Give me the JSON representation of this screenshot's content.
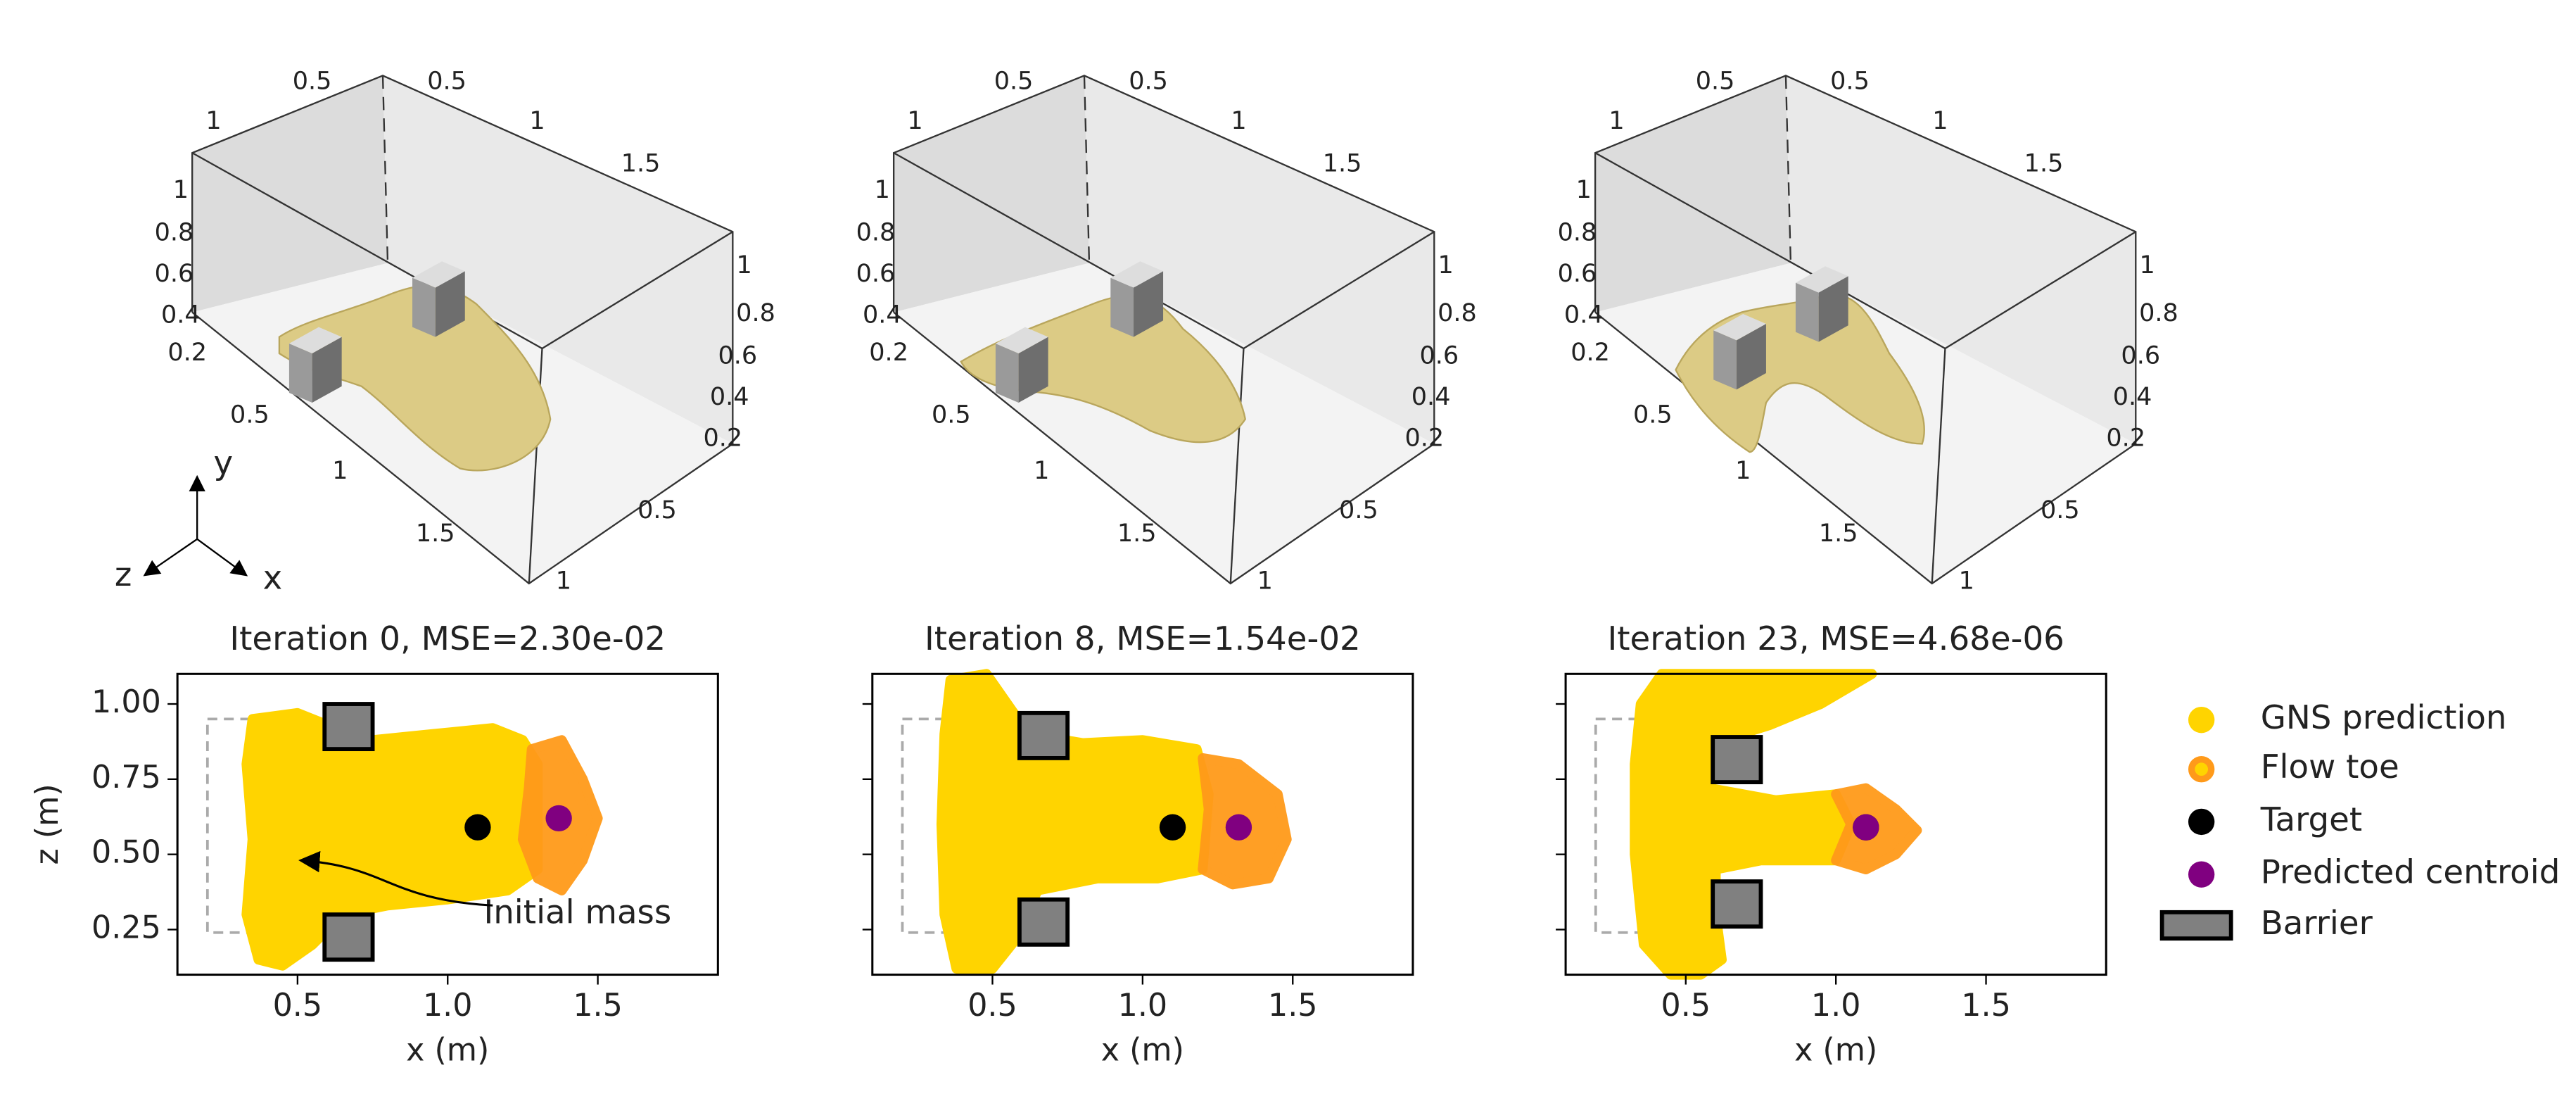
{
  "renders": [
    {
      "tick_labels": [
        "0.5",
        "0.5",
        "1",
        "1",
        "1.5",
        "1",
        "0.8",
        "0.6",
        "0.4",
        "0.2",
        "1",
        "0.8",
        "0.6",
        "0.4",
        "0.2",
        "0.5",
        "1",
        "1.5",
        "0.5",
        "1"
      ]
    },
    {
      "tick_labels": [
        "0.5",
        "0.5",
        "1",
        "1",
        "1.5",
        "1",
        "0.8",
        "0.6",
        "0.4",
        "0.2",
        "1",
        "0.8",
        "0.6",
        "0.4",
        "0.2",
        "0.5",
        "1",
        "1.5",
        "0.5",
        "1"
      ]
    },
    {
      "tick_labels": [
        "0.5",
        "0.5",
        "1",
        "1",
        "1.5",
        "1",
        "0.8",
        "0.6",
        "0.4",
        "0.2",
        "1",
        "0.8",
        "0.6",
        "0.4",
        "0.2",
        "0.5",
        "1",
        "1.5",
        "0.5",
        "1"
      ]
    }
  ],
  "triad": {
    "x": "x",
    "y": "y",
    "z": "z"
  },
  "legend": [
    {
      "name": "GNS prediction",
      "color": "#ffd400"
    },
    {
      "name": "Flow toe",
      "color": "#ff9a1a"
    },
    {
      "name": "Target",
      "color": "#000000"
    },
    {
      "name": "Predicted centroid",
      "color": "#800080"
    },
    {
      "name": "Barrier",
      "color": "#808080"
    }
  ],
  "chart_data": [
    {
      "type": "scatter",
      "title": "Iteration 0, MSE=2.30e-02",
      "xlabel": "x (m)",
      "ylabel": "z (m)",
      "xlim": [
        0.1,
        1.9
      ],
      "ylim": [
        0.1,
        1.1
      ],
      "xticks": [
        0.5,
        {
          "value": 1,
          "label": "1.0"
        },
        1.5
      ],
      "yticks": [
        0.25,
        {
          "value": 0.5,
          "label": "0.50"
        },
        {
          "value": 0.75,
          "label": "0.75"
        },
        {
          "value": 1,
          "label": "1.00"
        }
      ],
      "show_ytick_labels": true,
      "series": [
        {
          "color": "#ffd400",
          "x": [
            0.35,
            0.5,
            0.6,
            0.75,
            0.95,
            1.15,
            1.25,
            1.3,
            1.3,
            1.2,
            1.0,
            0.8,
            0.65,
            0.55,
            0.45,
            0.37,
            0.33,
            0.35,
            0.33
          ],
          "y": [
            0.95,
            0.97,
            0.93,
            0.88,
            0.9,
            0.92,
            0.88,
            0.8,
            0.45,
            0.38,
            0.35,
            0.33,
            0.3,
            0.2,
            0.13,
            0.15,
            0.3,
            0.55,
            0.8
          ]
        },
        {
          "color": "#ff9a1a",
          "x": [
            1.28,
            1.38,
            1.45,
            1.5,
            1.45,
            1.38,
            1.3,
            1.25,
            1.27
          ],
          "y": [
            0.85,
            0.88,
            0.75,
            0.62,
            0.48,
            0.38,
            0.42,
            0.55,
            0.72
          ]
        },
        {
          "color": "#000000",
          "x": [
            1.1
          ],
          "y": [
            0.59
          ]
        },
        {
          "color": "#800080",
          "x": [
            1.37
          ],
          "y": [
            0.62
          ]
        }
      ],
      "barriers": [
        [
          0.59,
          0.75,
          0.85,
          1.0
        ],
        [
          0.59,
          0.75,
          0.15,
          0.3
        ]
      ],
      "initial_mass": [
        0.2,
        0.5,
        0.24,
        0.95
      ],
      "annotation": "Initial mass"
    },
    {
      "type": "scatter",
      "title": "Iteration 8, MSE=1.54e-02",
      "xlabel": "x (m)",
      "xlim": [
        0.1,
        1.9
      ],
      "ylim": [
        0.1,
        1.1
      ],
      "xticks": [
        0.5,
        {
          "value": 1,
          "label": "1.0"
        },
        1.5
      ],
      "yticks": [
        0.25,
        0.5,
        0.75,
        1
      ],
      "show_ytick_labels": false,
      "series": [
        {
          "color": "#ffd400",
          "x": [
            0.36,
            0.48,
            0.55,
            0.62,
            0.8,
            1.0,
            1.18,
            1.22,
            1.2,
            1.05,
            0.85,
            0.65,
            0.58,
            0.5,
            0.38,
            0.34,
            0.33,
            0.34
          ],
          "y": [
            1.08,
            1.1,
            1.0,
            0.9,
            0.87,
            0.88,
            0.85,
            0.7,
            0.45,
            0.42,
            0.42,
            0.38,
            0.22,
            0.12,
            0.12,
            0.3,
            0.6,
            0.9
          ]
        },
        {
          "color": "#ff9a1a",
          "x": [
            1.2,
            1.32,
            1.45,
            1.48,
            1.42,
            1.3,
            1.2,
            1.22
          ],
          "y": [
            0.82,
            0.8,
            0.7,
            0.55,
            0.42,
            0.4,
            0.45,
            0.65
          ]
        },
        {
          "color": "#000000",
          "x": [
            1.1
          ],
          "y": [
            0.59
          ]
        },
        {
          "color": "#800080",
          "x": [
            1.32
          ],
          "y": [
            0.59
          ]
        }
      ],
      "barriers": [
        [
          0.59,
          0.75,
          0.82,
          0.97
        ],
        [
          0.59,
          0.75,
          0.2,
          0.35
        ]
      ],
      "initial_mass": [
        0.2,
        0.5,
        0.24,
        0.95
      ]
    },
    {
      "type": "scatter",
      "title": "Iteration 23, MSE=4.68e-06",
      "xlabel": "x (m)",
      "xlim": [
        0.1,
        1.9
      ],
      "ylim": [
        0.1,
        1.1
      ],
      "xticks": [
        0.5,
        {
          "value": 1,
          "label": "1.0"
        },
        1.5
      ],
      "yticks": [
        0.25,
        0.5,
        0.75,
        1
      ],
      "show_ytick_labels": false,
      "series": [
        {
          "color": "#ffd400",
          "x": [
            0.35,
            0.42,
            0.9,
            1.12,
            0.95,
            0.78,
            0.62,
            0.58,
            0.8,
            1.0,
            1.05,
            1.0,
            0.75,
            0.6,
            0.6,
            0.62,
            0.55,
            0.45,
            0.36,
            0.33,
            0.33
          ],
          "y": [
            1.0,
            1.1,
            1.1,
            1.1,
            1.0,
            0.93,
            0.88,
            0.72,
            0.68,
            0.7,
            0.6,
            0.48,
            0.48,
            0.45,
            0.3,
            0.15,
            0.1,
            0.1,
            0.2,
            0.5,
            0.8
          ]
        },
        {
          "color": "#ff9a1a",
          "x": [
            1.0,
            1.1,
            1.2,
            1.27,
            1.2,
            1.1,
            1.0,
            1.05
          ],
          "y": [
            0.7,
            0.72,
            0.65,
            0.58,
            0.5,
            0.45,
            0.48,
            0.6
          ]
        },
        {
          "color": "#000000",
          "x": [
            1.1
          ],
          "y": [
            0.59
          ]
        },
        {
          "color": "#800080",
          "x": [
            1.1
          ],
          "y": [
            0.59
          ]
        }
      ],
      "barriers": [
        [
          0.59,
          0.75,
          0.74,
          0.89
        ],
        [
          0.59,
          0.75,
          0.26,
          0.41
        ]
      ],
      "initial_mass": [
        0.2,
        0.5,
        0.24,
        0.95
      ]
    }
  ]
}
